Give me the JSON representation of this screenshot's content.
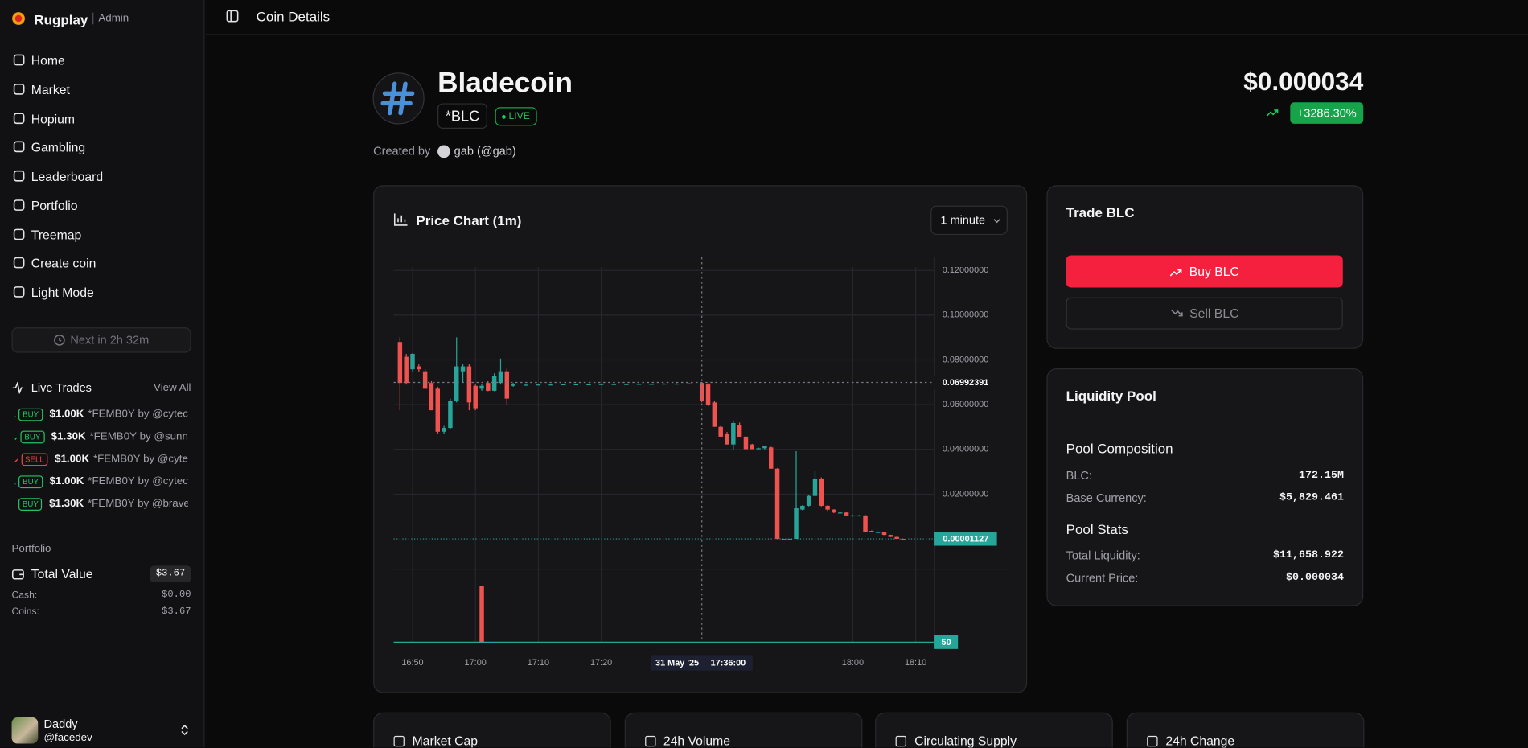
{
  "sidebar": {
    "brand": "Rugplay",
    "role": "Admin",
    "nav": [
      "Home",
      "Market",
      "Hopium",
      "Gambling",
      "Leaderboard",
      "Portfolio",
      "Treemap",
      "Create coin",
      "Light Mode"
    ],
    "next_reward": "Next in 2h 32m",
    "live_trades": {
      "title": "Live Trades",
      "view_all": "View All",
      "trades": [
        {
          "side": "BUY",
          "amount": "$1.00K",
          "coin": "*FEMB0Y",
          "user": "by @cytec",
          "color": "#22c55e"
        },
        {
          "side": "BUY",
          "amount": "$1.30K",
          "coin": "*FEMB0Y",
          "user": "by @sunn",
          "color": "#22c55e"
        },
        {
          "side": "SELL",
          "amount": "$1.00K",
          "coin": "*FEMB0Y",
          "user": "by @cyte",
          "color": "#ef4444"
        },
        {
          "side": "BUY",
          "amount": "$1.00K",
          "coin": "*FEMB0Y",
          "user": "by @cytec",
          "color": "#22c55e"
        },
        {
          "side": "BUY",
          "amount": "$1.30K",
          "coin": "*FEMB0Y",
          "user": "by @brave",
          "color": "#22c55e"
        }
      ]
    },
    "portfolio": {
      "title": "Portfolio",
      "total_label": "Total Value",
      "total": "$3.67",
      "cash_label": "Cash:",
      "cash": "$0.00",
      "coins_label": "Coins:",
      "coins": "$3.67"
    },
    "user": {
      "name": "Daddy",
      "handle": "@facedev"
    }
  },
  "header": {
    "title": "Coin Details"
  },
  "coin": {
    "name": "Bladecoin",
    "symbol": "*BLC",
    "status": "LIVE",
    "price": "$0.000034",
    "change": "+3286.30%",
    "created_by": "Created by",
    "creator": "gab (@gab)"
  },
  "chart_data": {
    "type": "candlestick",
    "title": "Price Chart (1m)",
    "interval": "1 minute",
    "up_color": "#26a69a",
    "down_color": "#ef5350",
    "grid": true,
    "xlim": [
      "16:47",
      "18:13"
    ],
    "xticks": [
      "16:50",
      "17:00",
      "17:10",
      "17:20",
      "18:00",
      "18:10"
    ],
    "ylim": [
      -0.0135,
      0.1215
    ],
    "yticks": [
      {
        "value": 0.02,
        "label": "0.02000000"
      },
      {
        "value": 0.04,
        "label": "0.04000000"
      },
      {
        "value": 0.06,
        "label": "0.06000000"
      },
      {
        "value": 0.08,
        "label": "0.08000000"
      },
      {
        "value": 0.1,
        "label": "0.10000000"
      },
      {
        "value": 0.12,
        "label": "0.12000000"
      }
    ],
    "x": [
      "16:48",
      "16:49",
      "16:50",
      "16:51",
      "16:52",
      "16:53",
      "16:54",
      "16:55",
      "16:56",
      "16:57",
      "16:58",
      "16:59",
      "17:00",
      "17:01",
      "17:02",
      "17:03",
      "17:04",
      "17:05",
      "17:06",
      "17:08",
      "17:10",
      "17:12",
      "17:14",
      "17:16",
      "17:18",
      "17:20",
      "17:22",
      "17:24",
      "17:26",
      "17:28",
      "17:30",
      "17:32",
      "17:34",
      "17:36",
      "17:37",
      "17:38",
      "17:39",
      "17:40",
      "17:41",
      "17:42",
      "17:43",
      "17:44",
      "17:45",
      "17:46",
      "17:47",
      "17:48",
      "17:49",
      "17:50",
      "17:51",
      "17:52",
      "17:53",
      "17:54",
      "17:55",
      "17:56",
      "17:57",
      "17:58",
      "17:59",
      "18:00",
      "18:01",
      "18:02",
      "18:03",
      "18:04",
      "18:05",
      "18:06",
      "18:07",
      "18:08"
    ],
    "open": [
      0.088,
      0.0814,
      0.0758,
      0.0771,
      0.0749,
      0.0697,
      0.0671,
      0.0479,
      0.0496,
      0.0618,
      0.0749,
      0.0771,
      0.0684,
      0.0671,
      0.0697,
      0.0662,
      0.0697,
      0.0749,
      0.0684,
      0.0688,
      0.0689,
      0.0689,
      0.069,
      0.069,
      0.069,
      0.0691,
      0.0691,
      0.0691,
      0.0692,
      0.0692,
      0.0693,
      0.0693,
      0.0694,
      0.0697,
      0.069,
      0.061,
      0.0501,
      0.047,
      0.0422,
      0.051,
      0.0457,
      0.0422,
      0.0403,
      0.0405,
      0.0409,
      0.0314,
      1e-05,
      1e-05,
      2e-05,
      0.0131,
      0.0148,
      0.0192,
      0.027,
      0.0148,
      0.0131,
      0.0118,
      0.0118,
      0.0105,
      0.0105,
      0.0105,
      0.0036,
      0.0031,
      0.0031,
      0.0018,
      0.0009,
      3e-05
    ],
    "high": [
      0.0901,
      0.0827,
      0.083,
      0.078,
      0.0758,
      0.0705,
      0.068,
      0.0505,
      0.0627,
      0.0901,
      0.078,
      0.078,
      0.069,
      0.069,
      0.0705,
      0.074,
      0.0806,
      0.076,
      0.0697,
      0.069,
      0.0691,
      0.0691,
      0.0692,
      0.0692,
      0.0692,
      0.0693,
      0.0693,
      0.0693,
      0.0694,
      0.0694,
      0.0695,
      0.0695,
      0.0696,
      0.0699,
      0.0695,
      0.0615,
      0.0505,
      0.0478,
      0.0525,
      0.052,
      0.046,
      0.0425,
      0.0408,
      0.0415,
      0.0412,
      0.0316,
      2e-05,
      2e-05,
      0.0392,
      0.015,
      0.0195,
      0.0305,
      0.0275,
      0.015,
      0.0133,
      0.012,
      0.012,
      0.0107,
      0.0107,
      0.0107,
      0.0038,
      0.0033,
      0.0032,
      0.0019,
      0.001,
      4e-05
    ],
    "low": [
      0.0575,
      0.069,
      0.0749,
      0.0745,
      0.0671,
      0.0575,
      0.047,
      0.047,
      0.049,
      0.061,
      0.07,
      0.0575,
      0.0575,
      0.0662,
      0.066,
      0.066,
      0.069,
      0.06,
      0.068,
      0.0687,
      0.0688,
      0.0688,
      0.0689,
      0.0689,
      0.0689,
      0.069,
      0.069,
      0.069,
      0.0691,
      0.0691,
      0.0692,
      0.0692,
      0.0693,
      0.061,
      0.0595,
      0.0501,
      0.0457,
      0.0422,
      0.04,
      0.0457,
      0.0401,
      0.0401,
      0.0402,
      0.04,
      0.0314,
      1e-05,
      1e-05,
      1e-05,
      1e-05,
      0.0128,
      0.0145,
      0.019,
      0.0145,
      0.0125,
      0.0115,
      0.0116,
      0.0103,
      0.0103,
      0.0103,
      0.0029,
      0.003,
      0.0029,
      0.0017,
      0.0008,
      1e-05,
      1e-05
    ],
    "close": [
      0.0697,
      0.0697,
      0.0827,
      0.0758,
      0.0671,
      0.0575,
      0.0479,
      0.0496,
      0.0618,
      0.0771,
      0.0771,
      0.061,
      0.0584,
      0.0684,
      0.0662,
      0.0727,
      0.0749,
      0.0627,
      0.069,
      0.0689,
      0.069,
      0.069,
      0.0691,
      0.0691,
      0.0691,
      0.0692,
      0.0692,
      0.0692,
      0.0693,
      0.0693,
      0.0694,
      0.0694,
      0.0695,
      0.0615,
      0.06,
      0.0501,
      0.0457,
      0.0422,
      0.0518,
      0.0457,
      0.0401,
      0.0401,
      0.0405,
      0.0415,
      0.0314,
      1e-05,
      1e-05,
      2e-05,
      0.0139,
      0.0148,
      0.0192,
      0.027,
      0.0148,
      0.0131,
      0.0118,
      0.0118,
      0.0105,
      0.0105,
      0.0105,
      0.0031,
      0.0031,
      0.0031,
      0.0018,
      0.0009,
      3e-05,
      1.127e-05
    ],
    "last_price": 1.127e-05,
    "crosshair": {
      "date": "31 May '25",
      "time": "17:36:00",
      "price": 0.06992391
    },
    "volume": {
      "x": [
        "17:01",
        "18:08"
      ],
      "values": [
        20000,
        50
      ],
      "colors": [
        "#ef5350",
        "#26a69a"
      ],
      "ylim": [
        0,
        26000
      ]
    }
  },
  "trade": {
    "title": "Trade BLC",
    "buy": "Buy BLC",
    "sell": "Sell BLC"
  },
  "liquidity_pool": {
    "title": "Liquidity Pool",
    "composition_title": "Pool Composition",
    "composition": [
      {
        "label": "BLC:",
        "value": "172.15M"
      },
      {
        "label": "Base Currency:",
        "value": "$5,829.461"
      }
    ],
    "stats_title": "Pool Stats",
    "stats": [
      {
        "label": "Total Liquidity:",
        "value": "$11,658.922"
      },
      {
        "label": "Current Price:",
        "value": "$0.000034"
      }
    ]
  },
  "stat_cards": [
    "Market Cap",
    "24h Volume",
    "Circulating Supply",
    "24h Change"
  ]
}
